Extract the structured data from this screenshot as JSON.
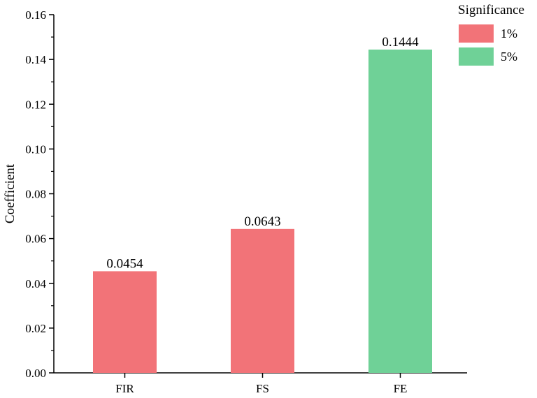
{
  "chart_data": {
    "type": "bar",
    "categories": [
      "FIR",
      "FS",
      "FE"
    ],
    "values": [
      0.0454,
      0.0643,
      0.1444
    ],
    "data_labels": [
      "0.0454",
      "0.0643",
      "0.1444"
    ],
    "significance": [
      "1%",
      "1%",
      "5%"
    ],
    "xlabel": "",
    "ylabel": "Coefficient",
    "ylim": [
      0,
      0.16
    ],
    "yticks": [
      0.0,
      0.02,
      0.04,
      0.06,
      0.08,
      0.1,
      0.12,
      0.14,
      0.16
    ],
    "ytick_labels": [
      "0.00",
      "0.02",
      "0.04",
      "0.06",
      "0.08",
      "0.10",
      "0.12",
      "0.14",
      "0.16"
    ],
    "grid": false,
    "legend": {
      "title": "Significance",
      "placement": "top-right",
      "entries": [
        {
          "label": "1%",
          "color": "#F27378"
        },
        {
          "label": "5%",
          "color": "#6FD197"
        }
      ]
    }
  }
}
